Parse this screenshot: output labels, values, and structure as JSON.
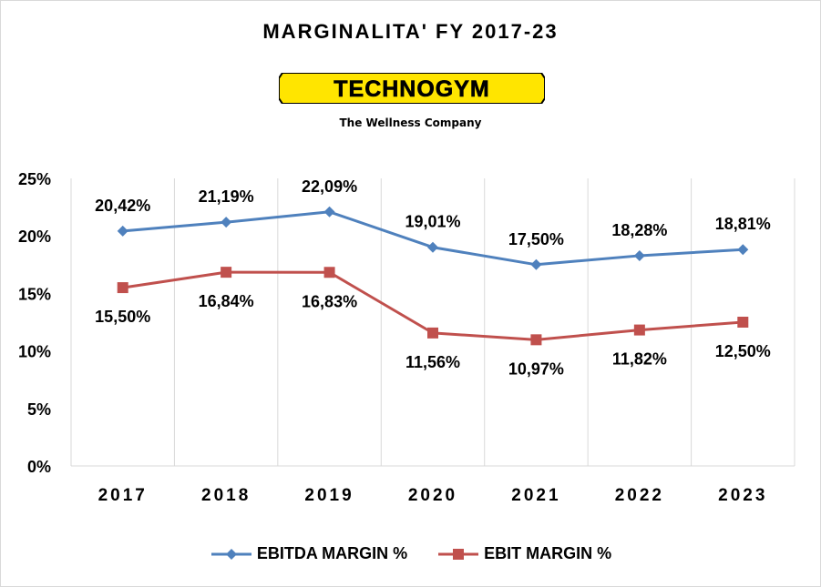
{
  "chart_data": {
    "type": "line",
    "title": "MARGINALITA' FY 2017-23",
    "logo_text": "TECHNOGYM",
    "logo_tagline": "The Wellness Company",
    "categories": [
      "2017",
      "2018",
      "2019",
      "2020",
      "2021",
      "2022",
      "2023"
    ],
    "series": [
      {
        "name": "EBITDA MARGIN %",
        "values": [
          20.42,
          21.19,
          22.09,
          19.01,
          17.5,
          18.28,
          18.81
        ],
        "labels": [
          "20,42%",
          "21,19%",
          "22,09%",
          "19,01%",
          "17,50%",
          "18,28%",
          "18,81%"
        ],
        "color": "#4f81bd",
        "marker": "diamond",
        "label_position": "above"
      },
      {
        "name": "EBIT MARGIN %",
        "values": [
          15.5,
          16.84,
          16.83,
          11.56,
          10.97,
          11.82,
          12.5
        ],
        "labels": [
          "15,50%",
          "16,84%",
          "16,83%",
          "11,56%",
          "10,97%",
          "11,82%",
          "12,50%"
        ],
        "color": "#c0504d",
        "marker": "square",
        "label_position": "below"
      }
    ],
    "y_ticks": [
      "0%",
      "5%",
      "10%",
      "15%",
      "20%",
      "25%"
    ],
    "ylim": [
      0,
      25
    ],
    "grid": "vertical",
    "legend": "bottom"
  }
}
